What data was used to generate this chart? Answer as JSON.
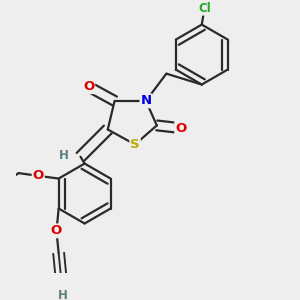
{
  "bg_color": "#eeeeee",
  "atom_colors": {
    "C": "#3a3a3a",
    "H": "#5a8080",
    "N": "#0000dd",
    "O": "#dd0000",
    "S": "#bbaa00",
    "Cl": "#22aa22"
  },
  "bond_color": "#2a2a2a",
  "lw": 1.6,
  "fs": 9.0
}
